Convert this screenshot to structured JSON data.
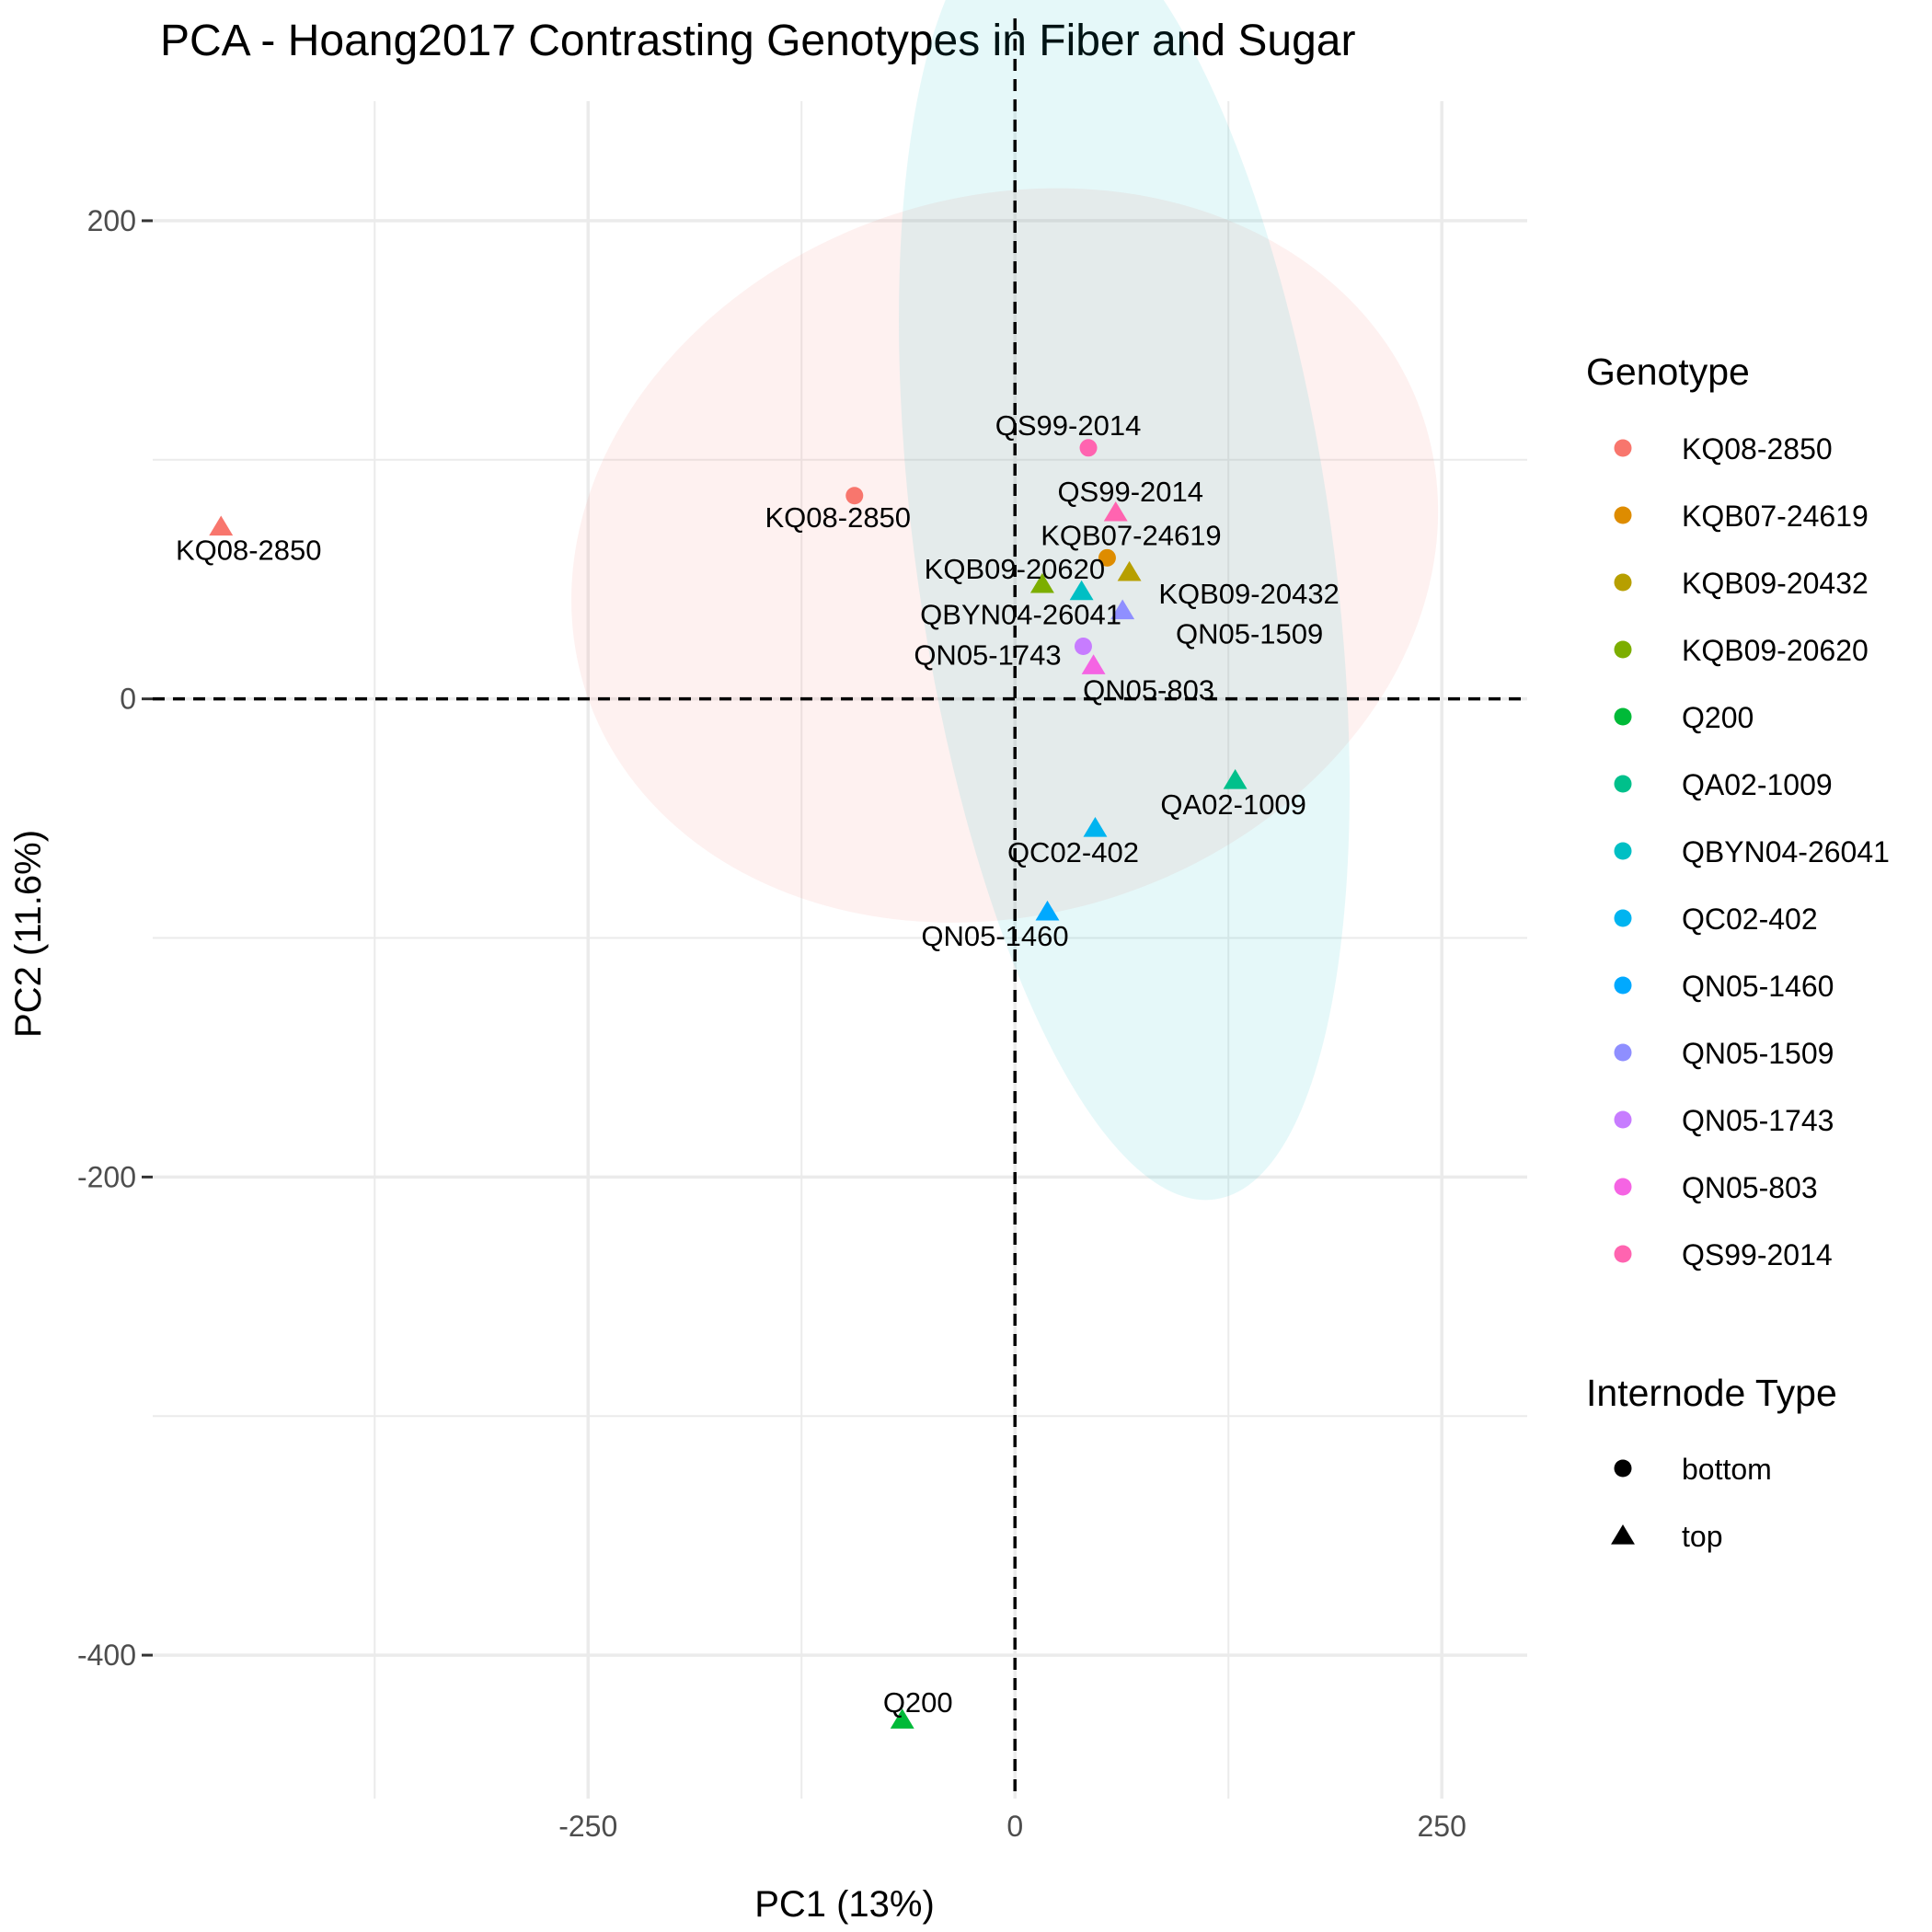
{
  "chart_data": {
    "type": "scatter",
    "title": "PCA - Hoang2017 Contrasting Genotypes in Fiber and Sugar",
    "xlabel": "PC1 (13%)",
    "ylabel": "PC2 (11.6%)",
    "xlim": [
      -505,
      300
    ],
    "ylim": [
      -460,
      250
    ],
    "xticks": [
      -250,
      0,
      250
    ],
    "xtick_labels": [
      "-250",
      "0",
      "250"
    ],
    "yticks": [
      200,
      0,
      -200,
      -400
    ],
    "ytick_labels": [
      "200",
      "0",
      "-200",
      "-400"
    ],
    "grid": true,
    "reference_lines": {
      "x": 0,
      "y": 0,
      "style": "dashed"
    },
    "legend_position": "right",
    "color_legend_title": "Genotype",
    "shape_legend_title": "Internode Type",
    "genotypes": [
      {
        "name": "KQ08-2850",
        "color": "#F8766D"
      },
      {
        "name": "KQB07-24619",
        "color": "#DE8C00"
      },
      {
        "name": "KQB09-20432",
        "color": "#B79F00"
      },
      {
        "name": "KQB09-20620",
        "color": "#7CAE00"
      },
      {
        "name": "Q200",
        "color": "#00BA38"
      },
      {
        "name": "QA02-1009",
        "color": "#00C08B"
      },
      {
        "name": "QBYN04-26041",
        "color": "#00BFC4"
      },
      {
        "name": "QC02-402",
        "color": "#00B4F0"
      },
      {
        "name": "QN05-1460",
        "color": "#00A9FF"
      },
      {
        "name": "QN05-1509",
        "color": "#8F8FFF"
      },
      {
        "name": "QN05-1743",
        "color": "#C77CFF"
      },
      {
        "name": "QN05-803",
        "color": "#F564E3"
      },
      {
        "name": "QS99-2014",
        "color": "#FF64B0"
      }
    ],
    "internode_types": [
      {
        "name": "bottom",
        "shape": "circle"
      },
      {
        "name": "top",
        "shape": "triangle"
      }
    ],
    "points": [
      {
        "label": "KQ08-2850",
        "genotype": "KQ08-2850",
        "type": "top",
        "x": -465,
        "y": 72
      },
      {
        "label": "KQ08-2850",
        "genotype": "KQ08-2850",
        "type": "bottom",
        "x": -94,
        "y": 85
      },
      {
        "label": "QS99-2014",
        "genotype": "QS99-2014",
        "type": "bottom",
        "x": 43,
        "y": 105
      },
      {
        "label": "QS99-2014",
        "genotype": "QS99-2014",
        "type": "top",
        "x": 59,
        "y": 78
      },
      {
        "label": "KQB07-24619",
        "genotype": "KQB07-24619",
        "type": "bottom",
        "x": 54,
        "y": 59
      },
      {
        "label": "KQB09-20620",
        "genotype": "KQB09-20620",
        "type": "top",
        "x": 16,
        "y": 48
      },
      {
        "label": "KQB09-20432",
        "genotype": "KQB09-20432",
        "type": "top",
        "x": 67,
        "y": 53
      },
      {
        "label": "QBYN04-26041",
        "genotype": "QBYN04-26041",
        "type": "top",
        "x": 39,
        "y": 45
      },
      {
        "label": "QN05-1509",
        "genotype": "QN05-1509",
        "type": "top",
        "x": 63,
        "y": 37
      },
      {
        "label": "QN05-1743",
        "genotype": "QN05-1743",
        "type": "bottom",
        "x": 40,
        "y": 22
      },
      {
        "label": "QN05-803",
        "genotype": "QN05-803",
        "type": "top",
        "x": 46,
        "y": 14
      },
      {
        "label": "QA02-1009",
        "genotype": "QA02-1009",
        "type": "top",
        "x": 129,
        "y": -34
      },
      {
        "label": "QC02-402",
        "genotype": "QC02-402",
        "type": "top",
        "x": 47,
        "y": -54
      },
      {
        "label": "QN05-1460",
        "genotype": "QN05-1460",
        "type": "top",
        "x": 19,
        "y": -89
      },
      {
        "label": "Q200",
        "genotype": "Q200",
        "type": "top",
        "x": -66,
        "y": -427
      }
    ],
    "ellipses": [
      {
        "group": "bottom",
        "color": "#F8766D",
        "opacity": 0.1,
        "center": [
          -6,
          60
        ],
        "rotation_deg": 18,
        "semi_axes": [
          258,
          150
        ]
      },
      {
        "group": "top",
        "color": "#00BFC4",
        "opacity": 0.1,
        "center": [
          64,
          61
        ],
        "rotation_deg": 8,
        "semi_axes": [
          122,
          273
        ]
      }
    ]
  }
}
